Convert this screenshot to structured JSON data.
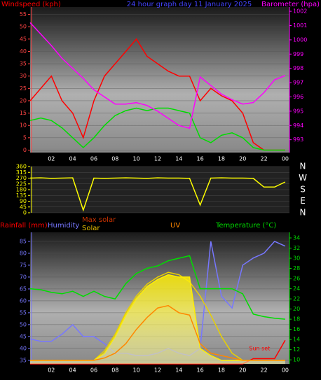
{
  "chart_data": [
    {
      "type": "line",
      "title": "24 hour graph day  11 January 2025",
      "ylabel": "Windspeed (kph)",
      "y2label": "Barometer (hpa)",
      "x": [
        0,
        1,
        2,
        3,
        4,
        5,
        6,
        7,
        8,
        9,
        10,
        11,
        12,
        13,
        14,
        15,
        16,
        17,
        18,
        19,
        20,
        21,
        22,
        23,
        24
      ],
      "xlim": [
        0,
        24.4
      ],
      "xticks": [
        {
          "value": 2,
          "label": "02"
        },
        {
          "value": 4,
          "label": "04"
        },
        {
          "value": 6,
          "label": "06"
        },
        {
          "value": 8,
          "label": "08"
        },
        10,
        12,
        14,
        16,
        18,
        20,
        22,
        {
          "value": 24,
          "label": "00"
        }
      ],
      "ylim": [
        -1,
        58
      ],
      "yticks": [
        0,
        5,
        10,
        15,
        20,
        25,
        30,
        35,
        40,
        45,
        50,
        55
      ],
      "y2lim": [
        992.1,
        1002.3
      ],
      "y2ticks": [
        993,
        994,
        995,
        996,
        997,
        998,
        999,
        1000,
        1001,
        1002
      ],
      "series": [
        {
          "color": "#ff0000",
          "values": [
            20,
            25,
            30,
            20,
            15,
            5,
            20,
            30,
            35,
            40,
            45,
            38,
            35,
            32,
            30,
            30,
            20,
            25,
            22,
            20,
            15,
            3,
            0,
            0,
            0
          ]
        },
        {
          "color": "#00dd00",
          "values": [
            12,
            13,
            12,
            9,
            5,
            1,
            5,
            10,
            14,
            16,
            17,
            16,
            17,
            17,
            16,
            15,
            5,
            3,
            6,
            7,
            5,
            1,
            0,
            0,
            0
          ]
        },
        {
          "color": "#ff00ff",
          "axis": "y2",
          "values": [
            1001.2,
            1000.4,
            999.6,
            998.7,
            998.0,
            997.3,
            996.5,
            996.0,
            995.5,
            995.5,
            995.6,
            995.4,
            995.0,
            994.5,
            994.0,
            993.8,
            997.4,
            996.8,
            996.2,
            995.8,
            995.5,
            995.6,
            996.3,
            997.2,
            997.5
          ]
        }
      ]
    },
    {
      "type": "line",
      "x": [
        0,
        1,
        2,
        3,
        4,
        5,
        6,
        7,
        8,
        9,
        10,
        11,
        12,
        13,
        14,
        15,
        16,
        17,
        18,
        19,
        20,
        21,
        22,
        23,
        24
      ],
      "xlim": [
        0,
        24.4
      ],
      "ylim": [
        0,
        360
      ],
      "yticks": [
        0,
        45,
        90,
        135,
        180,
        225,
        270,
        315,
        360
      ],
      "y2labels": [
        {
          "value": 360,
          "label": "N"
        },
        {
          "value": 270,
          "label": "W"
        },
        {
          "value": 180,
          "label": "S"
        },
        {
          "value": 90,
          "label": "E"
        },
        {
          "value": 0,
          "label": "N"
        }
      ],
      "series": [
        {
          "color": "#ffff00",
          "values": [
            270,
            272,
            268,
            270,
            272,
            20,
            270,
            268,
            270,
            272,
            270,
            268,
            272,
            270,
            270,
            268,
            60,
            270,
            272,
            270,
            270,
            268,
            200,
            200,
            240
          ]
        }
      ]
    },
    {
      "type": "line",
      "x": [
        0,
        1,
        2,
        3,
        4,
        5,
        6,
        7,
        8,
        9,
        10,
        11,
        12,
        13,
        14,
        15,
        16,
        17,
        18,
        19,
        20,
        21,
        22,
        23,
        24
      ],
      "xlim": [
        0,
        24.4
      ],
      "xticks": [
        {
          "value": 2,
          "label": "02"
        },
        {
          "value": 4,
          "label": "04"
        },
        {
          "value": 6,
          "label": "06"
        },
        {
          "value": 8,
          "label": "08"
        },
        10,
        12,
        14,
        16,
        18,
        20,
        22,
        {
          "value": 24,
          "label": "00"
        }
      ],
      "ylim": [
        33.5,
        88.8
      ],
      "yticks": [
        35,
        40,
        45,
        50,
        55,
        60,
        65,
        70,
        75,
        80,
        85
      ],
      "y2lim": [
        9.2,
        35.1
      ],
      "y2ticks": [
        10,
        12,
        14,
        16,
        18,
        20,
        22,
        24,
        26,
        28,
        30,
        32,
        34
      ],
      "y3lim": [
        0,
        5
      ],
      "series": [
        {
          "name": "Rainfall (mm)",
          "color": "#ff0000",
          "axis": "y3",
          "values": [
            0,
            0,
            0,
            0,
            0,
            0,
            0,
            0,
            0,
            0,
            0,
            0,
            0,
            0,
            0,
            0,
            0,
            0,
            0,
            0,
            0,
            0.2,
            0.2,
            0.2,
            0.9
          ]
        },
        {
          "name": "Humidity",
          "color": "#7777ff",
          "values": [
            44,
            43,
            43,
            46,
            50,
            45,
            45,
            42,
            38,
            38,
            37,
            37,
            38,
            40,
            38,
            37,
            40,
            85,
            62,
            57,
            75,
            78,
            80,
            85,
            83
          ]
        },
        {
          "name": "Max solar",
          "color": "#e8d000",
          "values": [
            35,
            35,
            35,
            35,
            35,
            35,
            35,
            39,
            46,
            55,
            62,
            67,
            70,
            72,
            71,
            68,
            62,
            54,
            45,
            38,
            35,
            35,
            35,
            35,
            35
          ]
        },
        {
          "name": "Solar",
          "color": "#ffee00",
          "fill": true,
          "values": [
            35,
            35,
            35,
            35,
            35,
            35,
            35,
            38,
            45,
            54,
            61,
            66,
            69,
            71,
            70,
            70,
            40,
            37,
            35,
            35,
            35,
            35,
            35,
            35,
            35
          ]
        },
        {
          "name": "UV",
          "color": "#ff8800",
          "values": [
            35,
            35,
            35,
            35,
            35,
            35,
            35,
            36,
            38,
            42,
            48,
            53,
            57,
            58,
            55,
            54,
            42,
            38,
            37,
            36,
            35,
            35,
            35,
            35,
            35
          ]
        },
        {
          "name": "Temperature (°C)",
          "color": "#00dd00",
          "axis": "y2",
          "values": [
            24,
            23.8,
            23.3,
            23,
            23.5,
            22.5,
            23.5,
            22.5,
            22,
            25,
            27,
            28,
            28.5,
            29.5,
            30,
            30.5,
            24,
            24,
            24,
            24,
            23,
            19,
            18.5,
            18.2,
            18
          ]
        }
      ],
      "annotations": [
        {
          "text": "Sun set",
          "x": 20.6
        }
      ]
    }
  ]
}
